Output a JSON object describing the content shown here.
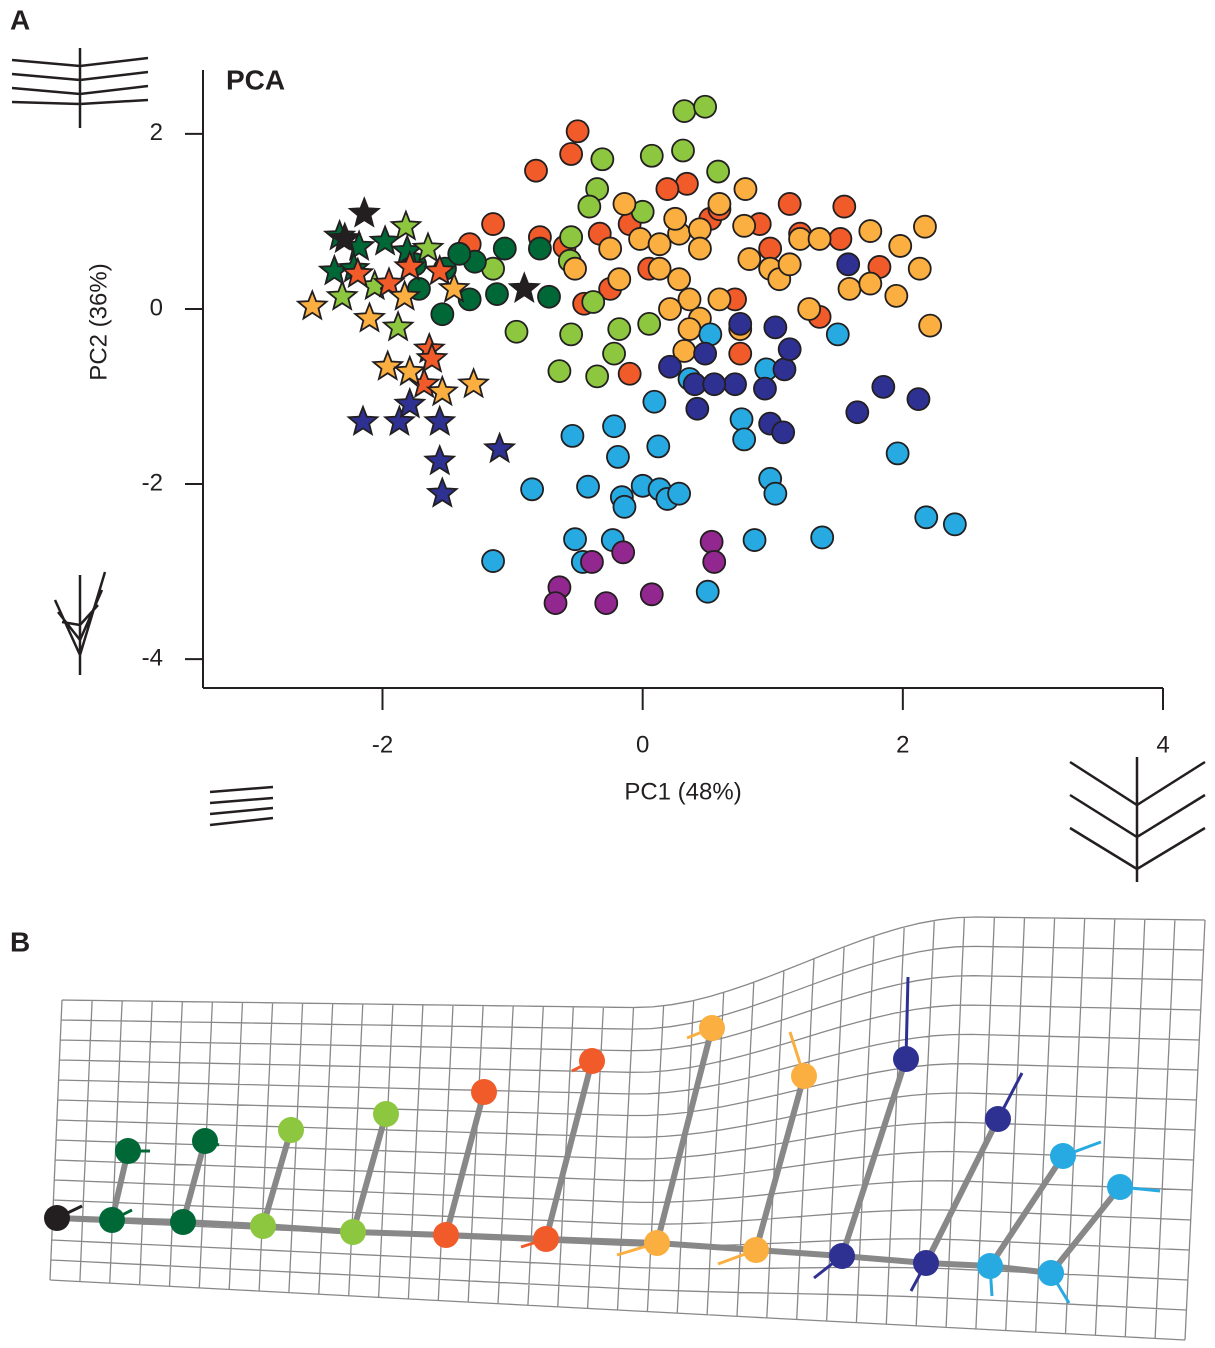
{
  "panels": {
    "a": "A",
    "b": "B"
  },
  "chart_data": {
    "type": "scatter",
    "title": "PCA",
    "x_label": "PC1 (48%)",
    "y_label": "PC2 (36%)",
    "xlim": [
      -3.38,
      4
    ],
    "ylim": [
      -4.33,
      2.73
    ],
    "xticks": [
      -2,
      0,
      2,
      4
    ],
    "yticks": [
      2,
      0,
      -2,
      -4
    ],
    "grid": false,
    "series": [
      {
        "color": "#f15a29",
        "marker": "circle",
        "x": [
          -0.5,
          -0.55,
          -0.82,
          0.34,
          0.19,
          -1.15,
          -0.79,
          -0.6,
          -0.33,
          -0.1,
          0.52,
          0.9,
          1.13,
          1.52,
          1.21,
          1.55,
          1.82,
          1.36,
          0.75,
          -0.1,
          -1.33,
          0.59,
          0.05,
          0.98,
          0.71,
          -0.25,
          -0.45
        ],
        "values": [
          2.03,
          1.77,
          1.58,
          1.43,
          1.37,
          0.97,
          0.82,
          0.71,
          0.86,
          0.97,
          1.03,
          0.97,
          1.2,
          0.8,
          0.86,
          1.17,
          0.48,
          -0.09,
          -0.51,
          -0.74,
          0.74,
          1.14,
          0.46,
          0.69,
          0.11,
          0.23,
          0.06
        ]
      },
      {
        "color": "#8dc63f",
        "marker": "circle",
        "x": [
          0.32,
          0.48,
          -0.31,
          0.07,
          0.31,
          0.58,
          -0.35,
          0,
          -0.41,
          -0.55,
          -1.15,
          -0.97,
          -0.55,
          -0.22,
          -0.64,
          -0.35,
          -0.38,
          -0.56,
          -0.18,
          0.05
        ],
        "values": [
          2.26,
          2.31,
          1.71,
          1.75,
          1.81,
          1.57,
          1.37,
          1.11,
          1.17,
          0.82,
          0.46,
          -0.26,
          -0.29,
          -0.51,
          -0.71,
          -0.77,
          0.08,
          0.55,
          -0.23,
          -0.17
        ]
      },
      {
        "color": "#faaf40",
        "marker": "circle",
        "x": [
          -0.02,
          0.13,
          0.28,
          0.44,
          0.59,
          0.79,
          0.25,
          0.44,
          0.13,
          0.28,
          0.36,
          0.21,
          0.44,
          0.36,
          0.59,
          0.82,
          0.98,
          1.21,
          1.36,
          1.59,
          1.75,
          1.98,
          2.17,
          2.13,
          2.21,
          1.95,
          1.75,
          1.05,
          0.75,
          0.32,
          -0.18,
          -0.52,
          -0.25,
          -0.14,
          0.78,
          1.13,
          1.28
        ],
        "values": [
          0.8,
          0.74,
          0.86,
          0.91,
          1.2,
          1.37,
          1.03,
          0.69,
          0.46,
          0.34,
          0.11,
          0,
          -0.11,
          -0.23,
          0.11,
          0.57,
          0.46,
          0.8,
          0.8,
          0.23,
          0.89,
          0.72,
          0.94,
          0.46,
          -0.19,
          0.15,
          0.29,
          0.34,
          -0.23,
          -0.48,
          0.34,
          0.46,
          0.69,
          1.2,
          0.95,
          0.51,
          0
        ]
      },
      {
        "color": "#006837",
        "marker": "circle",
        "x": [
          -1.52,
          -1.29,
          -1.06,
          -0.79,
          -1.12,
          -1.33,
          -1.54,
          -0.72,
          -1.72,
          -1.41,
          -1.75
        ],
        "values": [
          0.46,
          0.54,
          0.69,
          0.69,
          0.17,
          0.11,
          -0.06,
          0.14,
          0.23,
          0.63,
          0.51
        ]
      },
      {
        "color": "#27aae1",
        "marker": "circle",
        "x": [
          1.5,
          0.95,
          0.76,
          0.78,
          0.09,
          -0.22,
          -0.54,
          0.12,
          -0.19,
          -0.85,
          -0.42,
          -0.16,
          -0.14,
          0,
          0.13,
          0.19,
          0.28,
          0.98,
          1.02,
          1.96,
          2.18,
          2.4,
          1.38,
          0.86,
          -0.52,
          -0.46,
          -0.23,
          -1.15,
          0.5,
          0.52,
          0.36
        ],
        "values": [
          -0.29,
          -0.69,
          -1.26,
          -1.49,
          -1.06,
          -1.34,
          -1.45,
          -1.57,
          -1.69,
          -2.06,
          -2.03,
          -2.15,
          -2.26,
          -2.02,
          -2.06,
          -2.17,
          -2.11,
          -1.94,
          -2.11,
          -1.65,
          -2.38,
          -2.46,
          -2.61,
          -2.64,
          -2.63,
          -2.89,
          -2.64,
          -2.88,
          -3.23,
          -0.29,
          -0.8
        ]
      },
      {
        "color": "#2e3192",
        "marker": "circle",
        "x": [
          0.75,
          1.02,
          1.09,
          1.13,
          0.94,
          0.71,
          0.48,
          0.21,
          0.4,
          0.42,
          0.98,
          1.08,
          1.65,
          1.85,
          2.12,
          1.58,
          0.55
        ],
        "values": [
          -0.17,
          -0.21,
          -0.69,
          -0.46,
          -0.91,
          -0.86,
          -0.51,
          -0.66,
          -0.86,
          -1.14,
          -1.31,
          -1.41,
          -1.18,
          -0.89,
          -1.03,
          0.51,
          -0.86
        ]
      },
      {
        "color": "#92278f",
        "marker": "circle",
        "x": [
          -0.64,
          -0.67,
          -0.39,
          -0.15,
          -0.28,
          0.07,
          0.53,
          0.55
        ],
        "values": [
          -3.18,
          -3.36,
          -2.89,
          -2.78,
          -3.36,
          -3.26,
          -2.66,
          -2.89
        ]
      },
      {
        "color": "#006837",
        "marker": "star",
        "x": [
          -2.33,
          -2.37,
          -1.98,
          -2.18,
          -1.81,
          -2.22
        ],
        "values": [
          0.83,
          0.43,
          0.77,
          0.71,
          0.66,
          0.46
        ]
      },
      {
        "color": "#8dc63f",
        "marker": "star",
        "x": [
          -1.82,
          -1.65,
          -2.31,
          -1.88,
          -2.06
        ],
        "values": [
          0.94,
          0.69,
          0.14,
          -0.21,
          0.26
        ]
      },
      {
        "color": "#f15a29",
        "marker": "star",
        "x": [
          -2.19,
          -1.79,
          -1.56,
          -1.64,
          -1.62,
          -1.68,
          -1.95
        ],
        "values": [
          0.4,
          0.48,
          0.43,
          -0.46,
          -0.57,
          -0.86,
          0.29
        ]
      },
      {
        "color": "#faaf40",
        "marker": "star",
        "x": [
          -2.54,
          -2.1,
          -1.96,
          -1.79,
          -1.54,
          -1.3,
          -1.45,
          -1.83
        ],
        "values": [
          0.03,
          -0.11,
          -0.66,
          -0.72,
          -0.95,
          -0.86,
          0.23,
          0.14
        ]
      },
      {
        "color": "#2e3192",
        "marker": "star",
        "x": [
          -2.15,
          -1.87,
          -1.56,
          -1.79,
          -1.56,
          -1.54,
          -1.1
        ],
        "values": [
          -1.29,
          -1.29,
          -1.29,
          -1.09,
          -1.74,
          -2.11,
          -1.6
        ]
      },
      {
        "color": "#231f20",
        "marker": "star",
        "x": [
          -2.14,
          -2.29,
          -0.91
        ],
        "values": [
          1.09,
          0.8,
          0.23
        ]
      }
    ]
  }
}
